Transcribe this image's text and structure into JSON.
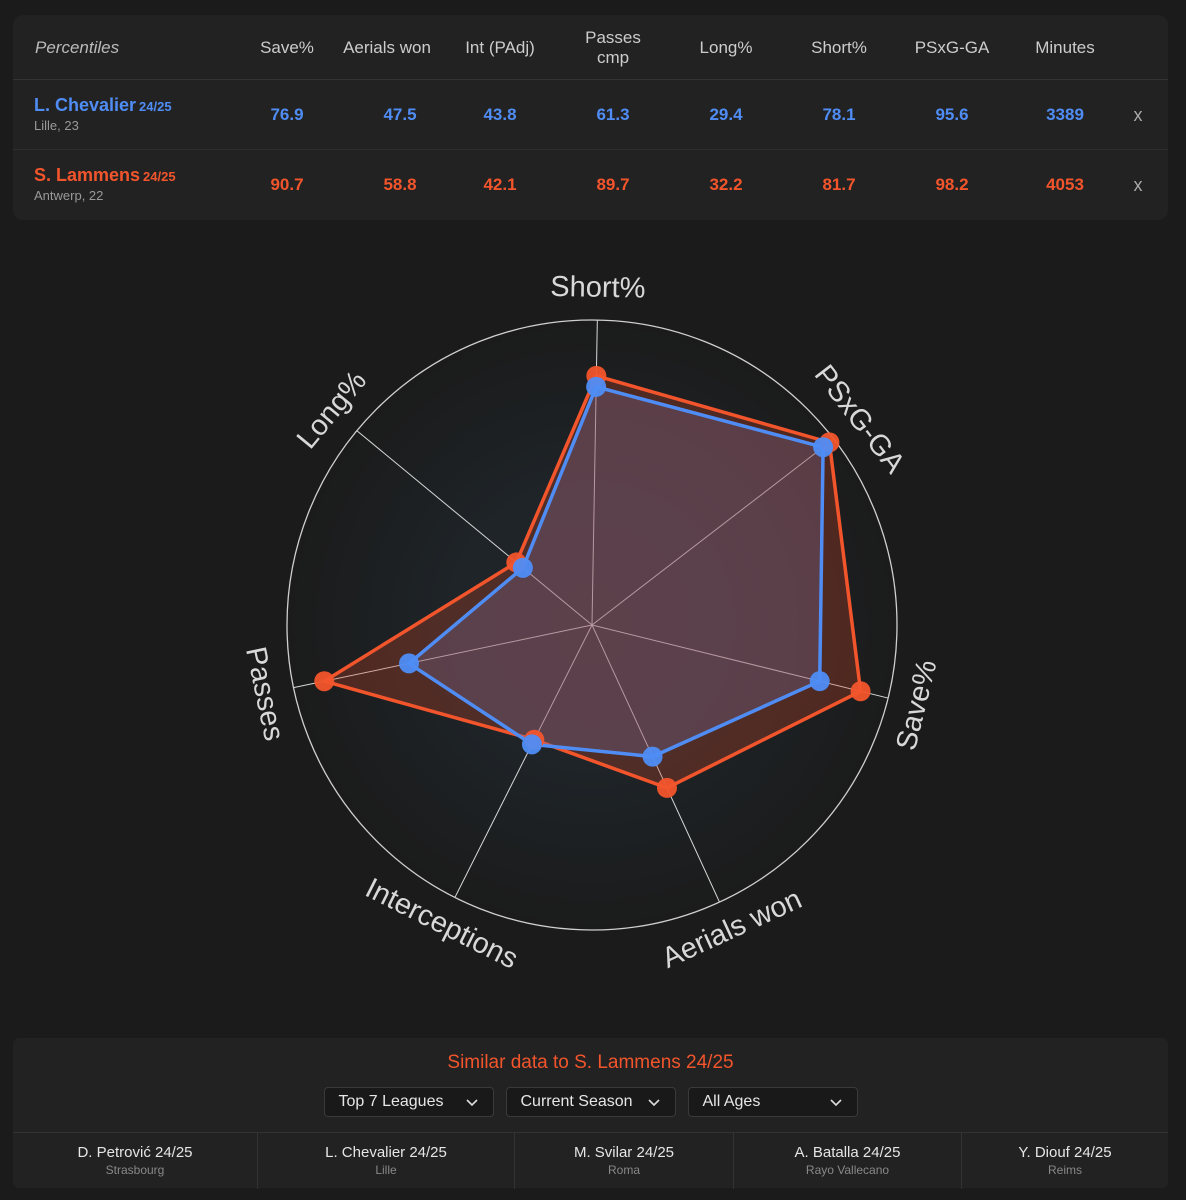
{
  "table": {
    "header_label": "Percentiles",
    "columns": [
      "Save%",
      "Aerials won",
      "Int (PAdj)",
      "Passes cmp",
      "Long%",
      "Short%",
      "PSxG-GA",
      "Minutes"
    ],
    "close_label": "x",
    "players": [
      {
        "name": "L. Chevalier",
        "season": "24/25",
        "club": "Lille, 23",
        "color": "#4f8df5",
        "values": [
          "76.9",
          "47.5",
          "43.8",
          "61.3",
          "29.4",
          "78.1",
          "95.6",
          "3389"
        ]
      },
      {
        "name": "S. Lammens",
        "season": "24/25",
        "club": "Antwerp, 22",
        "color": "#f2552c",
        "values": [
          "90.7",
          "58.8",
          "42.1",
          "89.7",
          "32.2",
          "81.7",
          "98.2",
          "4053"
        ]
      }
    ]
  },
  "chart_data": {
    "type": "radar",
    "axes": [
      "Short%",
      "PSxG-GA",
      "Save%",
      "Aerials won",
      "Interceptions",
      "Passes",
      "Long%"
    ],
    "range": [
      0,
      100
    ],
    "series": [
      {
        "name": "L. Chevalier 24/25",
        "color": "#4f8df5",
        "values": [
          78.1,
          95.6,
          76.9,
          47.5,
          43.8,
          61.3,
          29.4
        ]
      },
      {
        "name": "S. Lammens 24/25",
        "color": "#f2552c",
        "values": [
          81.7,
          98.2,
          90.7,
          58.8,
          42.1,
          89.7,
          32.2
        ]
      }
    ]
  },
  "similar": {
    "title": "Similar data to S. Lammens 24/25",
    "filters": [
      "Top 7 Leagues",
      "Current Season",
      "All Ages"
    ],
    "players": [
      {
        "name": "D. Petrović 24/25",
        "club": "Strasbourg"
      },
      {
        "name": "L. Chevalier 24/25",
        "club": "Lille"
      },
      {
        "name": "M. Svilar 24/25",
        "club": "Roma"
      },
      {
        "name": "A. Batalla 24/25",
        "club": "Rayo Vallecano"
      },
      {
        "name": "Y. Diouf 24/25",
        "club": "Reims"
      }
    ]
  }
}
